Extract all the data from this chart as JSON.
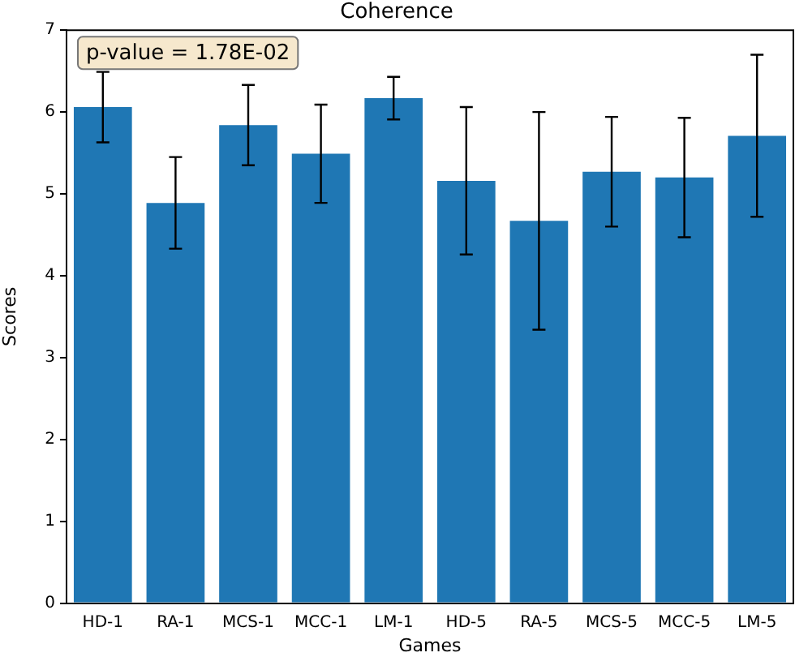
{
  "chart_data": {
    "type": "bar",
    "title": "Coherence",
    "xlabel": "Games",
    "ylabel": "Scores",
    "categories": [
      "HD-1",
      "RA-1",
      "MCS-1",
      "MCC-1",
      "LM-1",
      "HD-5",
      "RA-5",
      "MCS-5",
      "MCC-5",
      "LM-5"
    ],
    "values": [
      6.06,
      4.89,
      5.84,
      5.49,
      6.17,
      5.16,
      4.67,
      5.27,
      5.2,
      5.71
    ],
    "errors": [
      0.43,
      0.56,
      0.49,
      0.6,
      0.26,
      0.9,
      1.33,
      0.67,
      0.73,
      0.99
    ],
    "color": "#1f77b4",
    "ylim": [
      0,
      7
    ],
    "yticks": [
      0,
      1,
      2,
      3,
      4,
      5,
      6,
      7
    ],
    "annotations": [
      "p-value = 1.78E-02"
    ]
  }
}
